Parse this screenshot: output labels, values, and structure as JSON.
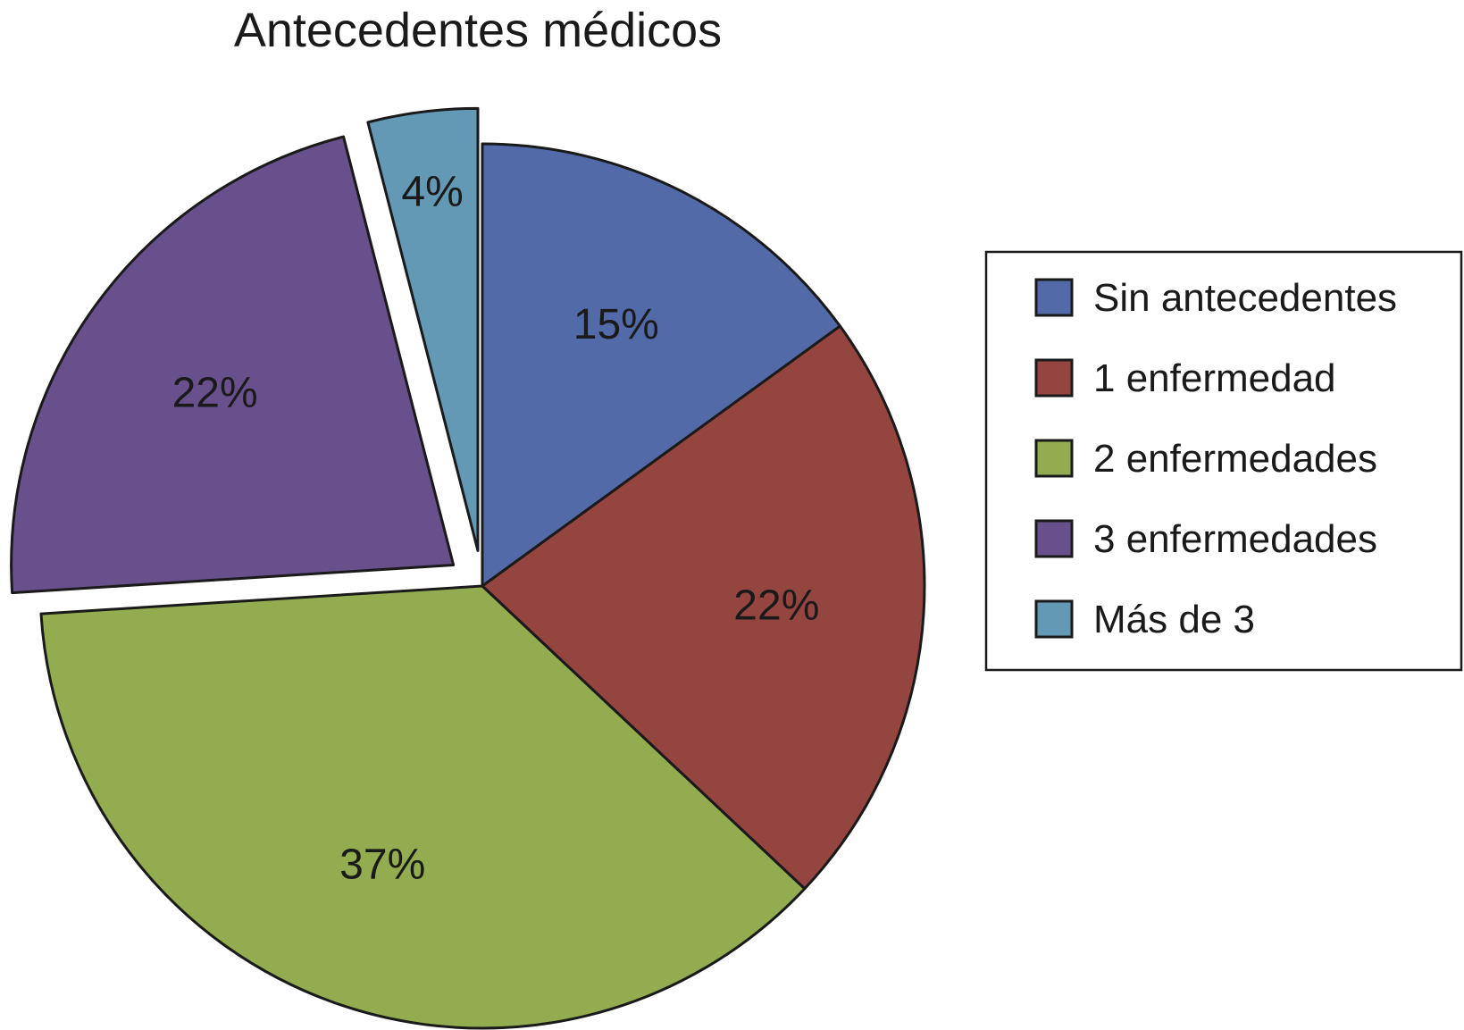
{
  "chart_data": {
    "type": "pie",
    "title": "Antecedentes médicos",
    "slices": [
      {
        "name": "Sin antecedentes",
        "value": 15,
        "label": "15%",
        "color": "#536aa8",
        "exploded": false
      },
      {
        "name": "1 enfermedad",
        "value": 22,
        "label": "22%",
        "color": "#954540",
        "exploded": false
      },
      {
        "name": "2 enfermedades",
        "value": 37,
        "label": "37%",
        "color": "#93ac4f",
        "exploded": false
      },
      {
        "name": "3 enfermedades",
        "value": 22,
        "label": "22%",
        "color": "#67508c",
        "exploded": true
      },
      {
        "name": "Más de 3",
        "value": 4,
        "label": "4%",
        "color": "#6499b6",
        "exploded": true
      }
    ],
    "legend": {
      "position": "right",
      "items": [
        "Sin antecedentes",
        "1 enfermedad",
        "2 enfermedades",
        "3 enfermedades",
        "Más de 3"
      ]
    }
  }
}
